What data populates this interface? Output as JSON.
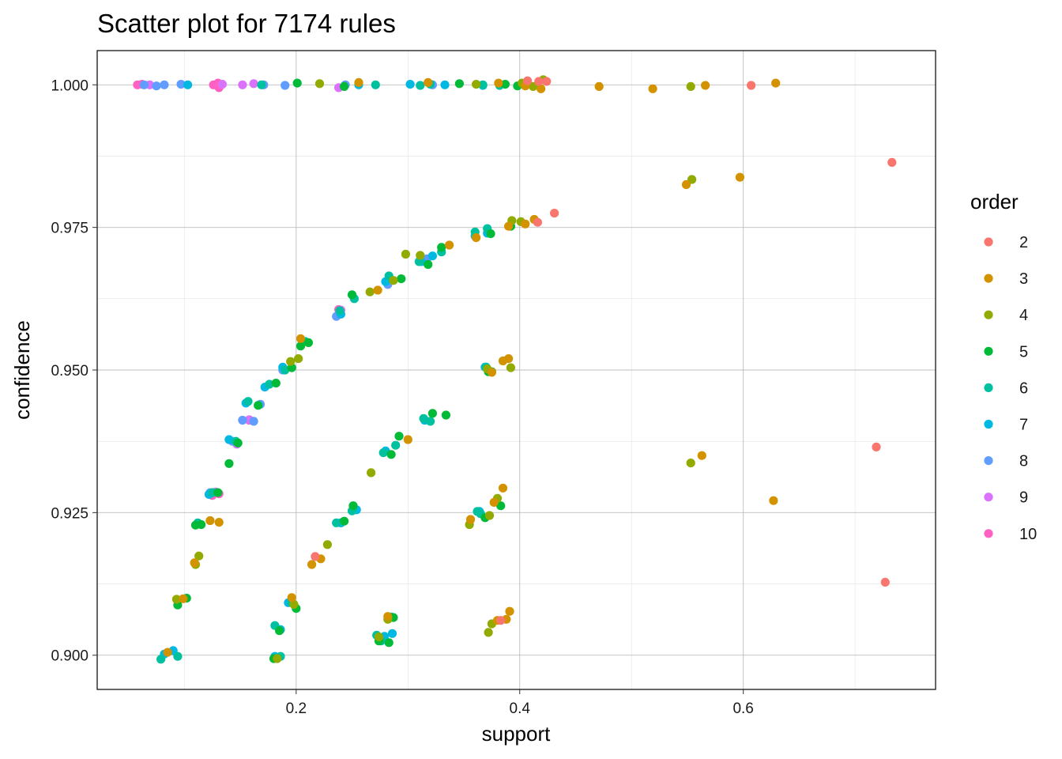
{
  "chart_data": {
    "type": "scatter",
    "title": "Scatter plot for 7174 rules",
    "xlabel": "support",
    "ylabel": "confidence",
    "xlim": [
      0.022,
      0.772
    ],
    "ylim": [
      0.894,
      1.006
    ],
    "x_ticks": [
      0.2,
      0.4,
      0.6
    ],
    "x_tick_labels": [
      "0.2",
      "0.4",
      "0.6"
    ],
    "x_minor_ticks": [
      0.1,
      0.3,
      0.5,
      0.7
    ],
    "y_ticks": [
      0.9,
      0.925,
      0.95,
      0.975,
      1.0
    ],
    "y_tick_labels": [
      "0.900",
      "0.925",
      "0.950",
      "0.975",
      "1.000"
    ],
    "y_minor_ticks": [
      0.9125,
      0.9375,
      0.9625,
      0.9875
    ],
    "grid": true,
    "legend": {
      "title": "order",
      "placement": "right",
      "entries": [
        {
          "label": "2",
          "color": "#F8766D"
        },
        {
          "label": "3",
          "color": "#D39200"
        },
        {
          "label": "4",
          "color": "#93AA00"
        },
        {
          "label": "5",
          "color": "#00BA38"
        },
        {
          "label": "6",
          "color": "#00C19F"
        },
        {
          "label": "7",
          "color": "#00B9E3"
        },
        {
          "label": "8",
          "color": "#619CFF"
        },
        {
          "label": "9",
          "color": "#DB72FB"
        },
        {
          "label": "10",
          "color": "#FF61C3"
        }
      ]
    },
    "series": [
      {
        "name": "2",
        "color": "#F8766D",
        "points": [
          [
            0.407,
            1.0007
          ],
          [
            0.417,
            1.0006
          ],
          [
            0.424,
            1.0006
          ],
          [
            0.607,
            0.9999
          ],
          [
            0.733,
            0.9864
          ],
          [
            0.431,
            0.9775
          ],
          [
            0.416,
            0.9759
          ],
          [
            0.719,
            0.9365
          ],
          [
            0.727,
            0.9128
          ],
          [
            0.217,
            0.9173
          ],
          [
            0.383,
            0.9061
          ]
        ]
      },
      {
        "name": "3",
        "color": "#D39200",
        "points": [
          [
            0.381,
            1.0003
          ],
          [
            0.405,
            0.9998
          ],
          [
            0.419,
            0.9993
          ],
          [
            0.471,
            0.9997
          ],
          [
            0.519,
            0.9993
          ],
          [
            0.566,
            0.9999
          ],
          [
            0.629,
            1.0003
          ],
          [
            0.256,
            1.0004
          ],
          [
            0.318,
            1.0004
          ],
          [
            0.597,
            0.9838
          ],
          [
            0.549,
            0.9825
          ],
          [
            0.413,
            0.9764
          ],
          [
            0.405,
            0.9756
          ],
          [
            0.39,
            0.9752
          ],
          [
            0.337,
            0.9719
          ],
          [
            0.273,
            0.964
          ],
          [
            0.204,
            0.9555
          ],
          [
            0.39,
            0.952
          ],
          [
            0.385,
            0.9516
          ],
          [
            0.375,
            0.9496
          ],
          [
            0.3,
            0.9378
          ],
          [
            0.563,
            0.935
          ],
          [
            0.627,
            0.9271
          ],
          [
            0.385,
            0.9293
          ],
          [
            0.377,
            0.9268
          ],
          [
            0.356,
            0.9238
          ],
          [
            0.123,
            0.9236
          ],
          [
            0.131,
            0.9233
          ],
          [
            0.109,
            0.9162
          ],
          [
            0.214,
            0.9159
          ],
          [
            0.222,
            0.9169
          ],
          [
            0.391,
            0.9077
          ],
          [
            0.388,
            0.9063
          ],
          [
            0.282,
            0.9068
          ],
          [
            0.085,
            0.9005
          ],
          [
            0.099,
            0.9099
          ],
          [
            0.196,
            0.9101
          ],
          [
            0.38,
            0.9061
          ],
          [
            0.361,
            0.9732
          ]
        ]
      },
      {
        "name": "4",
        "color": "#93AA00",
        "points": [
          [
            0.361,
            1.0001
          ],
          [
            0.402,
            1.0003
          ],
          [
            0.412,
            0.9997
          ],
          [
            0.421,
            1.0009
          ],
          [
            0.553,
            0.9997
          ],
          [
            0.554,
            0.9834
          ],
          [
            0.393,
            0.9762
          ],
          [
            0.401,
            0.976
          ],
          [
            0.392,
            0.9504
          ],
          [
            0.371,
            0.9502
          ],
          [
            0.195,
            0.9515
          ],
          [
            0.202,
            0.952
          ],
          [
            0.267,
            0.932
          ],
          [
            0.553,
            0.9337
          ],
          [
            0.373,
            0.9245
          ],
          [
            0.38,
            0.9275
          ],
          [
            0.355,
            0.9229
          ],
          [
            0.228,
            0.9194
          ],
          [
            0.11,
            0.9159
          ],
          [
            0.113,
            0.9174
          ],
          [
            0.093,
            0.9098
          ],
          [
            0.375,
            0.9055
          ],
          [
            0.372,
            0.904
          ],
          [
            0.282,
            0.9063
          ],
          [
            0.274,
            0.9032
          ],
          [
            0.198,
            0.9089
          ],
          [
            0.183,
            0.8994
          ],
          [
            0.298,
            0.9703
          ],
          [
            0.311,
            0.9701
          ],
          [
            0.287,
            0.9657
          ],
          [
            0.266,
            0.9637
          ],
          [
            0.221,
            1.0002
          ]
        ]
      },
      {
        "name": "5",
        "color": "#00BA38",
        "points": [
          [
            0.346,
            1.0002
          ],
          [
            0.387,
            1.0001
          ],
          [
            0.398,
            0.9998
          ],
          [
            0.392,
            0.9752
          ],
          [
            0.374,
            0.9739
          ],
          [
            0.33,
            0.9715
          ],
          [
            0.318,
            0.9685
          ],
          [
            0.294,
            0.966
          ],
          [
            0.25,
            0.9632
          ],
          [
            0.211,
            0.9548
          ],
          [
            0.204,
            0.9542
          ],
          [
            0.196,
            0.9504
          ],
          [
            0.182,
            0.9477
          ],
          [
            0.166,
            0.9438
          ],
          [
            0.14,
            0.9336
          ],
          [
            0.148,
            0.9372
          ],
          [
            0.13,
            0.9285
          ],
          [
            0.115,
            0.9229
          ],
          [
            0.11,
            0.9228
          ],
          [
            0.094,
            0.9088
          ],
          [
            0.102,
            0.91
          ],
          [
            0.375,
            0.9497
          ],
          [
            0.372,
            0.9497
          ],
          [
            0.334,
            0.9421
          ],
          [
            0.322,
            0.9424
          ],
          [
            0.292,
            0.9384
          ],
          [
            0.285,
            0.9352
          ],
          [
            0.251,
            0.9262
          ],
          [
            0.243,
            0.9235
          ],
          [
            0.383,
            0.9262
          ],
          [
            0.369,
            0.9241
          ],
          [
            0.2,
            0.9082
          ],
          [
            0.185,
            0.9043
          ],
          [
            0.18,
            0.8994
          ],
          [
            0.274,
            0.9025
          ],
          [
            0.283,
            0.9022
          ],
          [
            0.287,
            0.9066
          ],
          [
            0.201,
            1.0003
          ],
          [
            0.243,
            0.9997
          ]
        ]
      },
      {
        "name": "6",
        "color": "#00C19F",
        "points": [
          [
            0.367,
            1.0
          ],
          [
            0.382,
            0.9999
          ],
          [
            0.371,
            0.9748
          ],
          [
            0.36,
            0.9742
          ],
          [
            0.33,
            0.9707
          ],
          [
            0.31,
            0.969
          ],
          [
            0.283,
            0.9665
          ],
          [
            0.252,
            0.9625
          ],
          [
            0.239,
            0.9604
          ],
          [
            0.208,
            0.955
          ],
          [
            0.19,
            0.95
          ],
          [
            0.176,
            0.9475
          ],
          [
            0.157,
            0.9445
          ],
          [
            0.146,
            0.9375
          ],
          [
            0.125,
            0.9285
          ],
          [
            0.112,
            0.9232
          ],
          [
            0.094,
            0.8998
          ],
          [
            0.079,
            0.8993
          ],
          [
            0.32,
            0.941
          ],
          [
            0.314,
            0.9415
          ],
          [
            0.278,
            0.9355
          ],
          [
            0.289,
            0.9368
          ],
          [
            0.25,
            0.9253
          ],
          [
            0.236,
            0.9232
          ],
          [
            0.365,
            0.9248
          ],
          [
            0.362,
            0.9252
          ],
          [
            0.37,
            0.9505
          ],
          [
            0.196,
            0.9092
          ],
          [
            0.181,
            0.9052
          ],
          [
            0.186,
            0.8998
          ],
          [
            0.276,
            0.9025
          ],
          [
            0.272,
            0.9035
          ],
          [
            0.285,
            0.9067
          ],
          [
            0.271,
            1.0
          ],
          [
            0.311,
            0.9999
          ],
          [
            0.32,
            1.0001
          ],
          [
            0.169,
            1.0
          ]
        ]
      },
      {
        "name": "7",
        "color": "#00B9E3",
        "points": [
          [
            0.371,
            0.974
          ],
          [
            0.36,
            0.9735
          ],
          [
            0.322,
            0.97
          ],
          [
            0.312,
            0.969
          ],
          [
            0.28,
            0.9655
          ],
          [
            0.24,
            0.9598
          ],
          [
            0.188,
            0.9505
          ],
          [
            0.172,
            0.947
          ],
          [
            0.155,
            0.9442
          ],
          [
            0.14,
            0.9378
          ],
          [
            0.122,
            0.9282
          ],
          [
            0.09,
            0.9008
          ],
          [
            0.082,
            0.9002
          ],
          [
            0.315,
            0.9412
          ],
          [
            0.28,
            0.9358
          ],
          [
            0.254,
            0.9255
          ],
          [
            0.24,
            0.9232
          ],
          [
            0.364,
            0.9252
          ],
          [
            0.369,
            0.9505
          ],
          [
            0.193,
            0.9092
          ],
          [
            0.186,
            0.9045
          ],
          [
            0.181,
            0.8998
          ],
          [
            0.279,
            0.9033
          ],
          [
            0.286,
            0.9038
          ],
          [
            0.103,
            1.0
          ],
          [
            0.256,
            1.0
          ],
          [
            0.302,
            1.0001
          ],
          [
            0.333,
            1.0
          ],
          [
            0.367,
            0.9999
          ]
        ]
      },
      {
        "name": "8",
        "color": "#619CFF",
        "points": [
          [
            0.317,
            0.9695
          ],
          [
            0.282,
            0.965
          ],
          [
            0.236,
            0.9594
          ],
          [
            0.188,
            0.95
          ],
          [
            0.168,
            0.944
          ],
          [
            0.162,
            0.941
          ],
          [
            0.152,
            0.9412
          ],
          [
            0.143,
            0.9375
          ],
          [
            0.123,
            0.9285
          ],
          [
            0.24,
            0.9232
          ],
          [
            0.082,
            1.0
          ],
          [
            0.097,
            1.0001
          ],
          [
            0.171,
            1.0
          ],
          [
            0.19,
            0.9999
          ],
          [
            0.244,
            1.0
          ],
          [
            0.322,
            1.0
          ],
          [
            0.064,
            1.0
          ],
          [
            0.075,
            0.9998
          ]
        ]
      },
      {
        "name": "9",
        "color": "#DB72FB",
        "points": [
          [
            0.24,
            0.9605
          ],
          [
            0.158,
            0.9413
          ],
          [
            0.147,
            0.937
          ],
          [
            0.122,
            0.9282
          ],
          [
            0.128,
            0.9286
          ],
          [
            0.134,
            1.0001
          ],
          [
            0.152,
            1.0
          ],
          [
            0.069,
            1.0
          ],
          [
            0.162,
            1.0002
          ],
          [
            0.238,
            0.9995
          ]
        ]
      },
      {
        "name": "10",
        "color": "#FF61C3",
        "points": [
          [
            0.058,
            1.0
          ],
          [
            0.062,
            1.0001
          ],
          [
            0.126,
            1.0
          ],
          [
            0.131,
            0.9995
          ],
          [
            0.13,
            1.0003
          ],
          [
            0.125,
            0.928
          ],
          [
            0.131,
            0.9283
          ],
          [
            0.158,
            0.9412
          ],
          [
            0.238,
            0.9606
          ]
        ]
      }
    ]
  }
}
